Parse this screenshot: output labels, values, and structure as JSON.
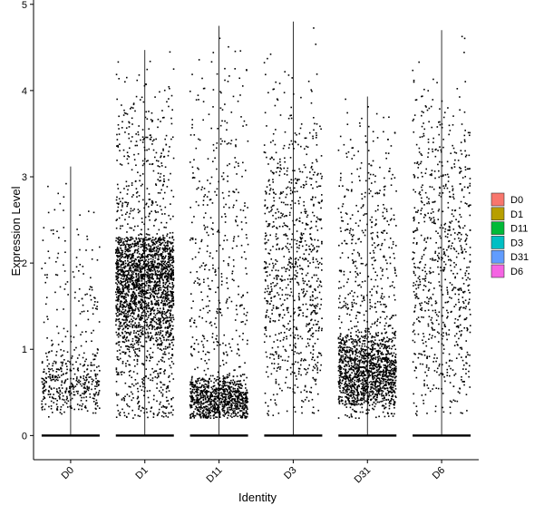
{
  "chart_data": {
    "type": "scatter",
    "subtype": "violin-jitter",
    "title": "",
    "xlabel": "Identity",
    "ylabel": "Expression Level",
    "ylim": [
      -0.28,
      5.05
    ],
    "yticks": [
      0,
      1,
      2,
      3,
      4,
      5
    ],
    "categories": [
      "D0",
      "D1",
      "D11",
      "D3",
      "D31",
      "D6"
    ],
    "legend": {
      "placement": "right",
      "title": "",
      "entries": [
        "D0",
        "D1",
        "D11",
        "D3",
        "D31",
        "D6"
      ]
    },
    "grid": false,
    "series": [
      {
        "name": "D0",
        "color": "#F8766D",
        "max": 3.12,
        "points_nonzero": 500,
        "density_peak": 0.6,
        "dense_band": [
          0.3,
          1.0
        ]
      },
      {
        "name": "D1",
        "color": "#B79F00",
        "max": 4.47,
        "points_nonzero": 2600,
        "density_peak": 1.8,
        "dense_band": [
          1.0,
          2.3
        ]
      },
      {
        "name": "D11",
        "color": "#00BA38",
        "max": 4.75,
        "points_nonzero": 1300,
        "density_peak": 0.4,
        "dense_band": [
          0.2,
          0.7
        ]
      },
      {
        "name": "D3",
        "color": "#00BFC4",
        "max": 4.8,
        "points_nonzero": 900,
        "density_peak": 1.9,
        "dense_band": [
          0.5,
          3.5
        ]
      },
      {
        "name": "D31",
        "color": "#619CFF",
        "max": 3.93,
        "points_nonzero": 1800,
        "density_peak": 0.7,
        "dense_band": [
          0.35,
          1.2
        ]
      },
      {
        "name": "D6",
        "color": "#F564E3",
        "max": 4.7,
        "points_nonzero": 800,
        "density_peak": 2.0,
        "dense_band": [
          0.5,
          3.8
        ]
      }
    ]
  }
}
